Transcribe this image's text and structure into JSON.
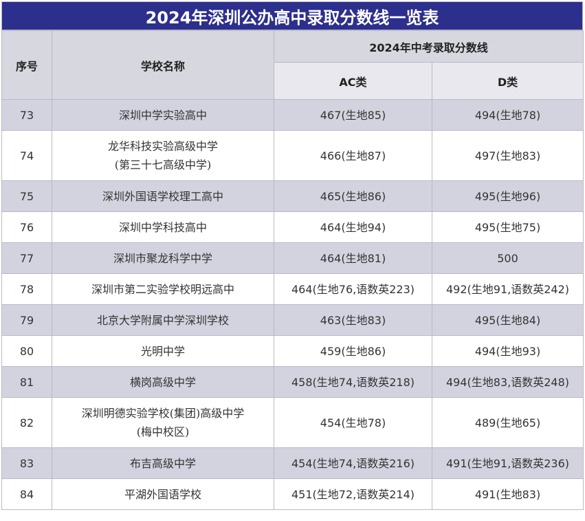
{
  "title": "2024年深圳公办高中录取分数线一览表",
  "headers": {
    "index": "序号",
    "school": "学校名称",
    "score_group": "2024年中考录取分数线",
    "ac": "AC类",
    "d": "D类"
  },
  "rows": [
    {
      "index": "73",
      "name_line1": "深圳中学实验高中",
      "name_line2": "",
      "ac": "467(生地85)",
      "d": "494(生地78)"
    },
    {
      "index": "74",
      "name_line1": "龙华科技实验高级中学",
      "name_line2": "(第三十七高级中学)",
      "ac": "466(生地87)",
      "d": "497(生地83)"
    },
    {
      "index": "75",
      "name_line1": "深圳外国语学校理工高中",
      "name_line2": "",
      "ac": "465(生地86)",
      "d": "495(生地96)"
    },
    {
      "index": "76",
      "name_line1": "深圳中学科技高中",
      "name_line2": "",
      "ac": "464(生地94)",
      "d": "495(生地75)"
    },
    {
      "index": "77",
      "name_line1": "深圳市聚龙科学中学",
      "name_line2": "",
      "ac": "464(生地81)",
      "d": "500"
    },
    {
      "index": "78",
      "name_line1": "深圳市第二实验学校明远高中",
      "name_line2": "",
      "ac": "464(生地76,语数英223)",
      "d": "492(生地91,语数英242)"
    },
    {
      "index": "79",
      "name_line1": "北京大学附属中学深圳学校",
      "name_line2": "",
      "ac": "463(生地83)",
      "d": "495(生地84)"
    },
    {
      "index": "80",
      "name_line1": "光明中学",
      "name_line2": "",
      "ac": "459(生地86)",
      "d": "494(生地93)"
    },
    {
      "index": "81",
      "name_line1": "横岗高级中学",
      "name_line2": "",
      "ac": "458(生地74,语数英218)",
      "d": "494(生地83,语数英248)"
    },
    {
      "index": "82",
      "name_line1": "深圳明德实验学校(集团)高级中学",
      "name_line2": "(梅中校区)",
      "ac": "454(生地78)",
      "d": "489(生地65)"
    },
    {
      "index": "83",
      "name_line1": "布吉高级中学",
      "name_line2": "",
      "ac": "454(生地74,语数英216)",
      "d": "491(生地91,语数英236)"
    },
    {
      "index": "84",
      "name_line1": "平湖外国语学校",
      "name_line2": "",
      "ac": "451(生地72,语数英214)",
      "d": "491(生地83)"
    }
  ],
  "colors": {
    "title_bg": "#2c2f8c",
    "header_bg": "#d7d7e0",
    "row_alt_bg": "#d3d3e0",
    "border": "#b9b9c6"
  }
}
